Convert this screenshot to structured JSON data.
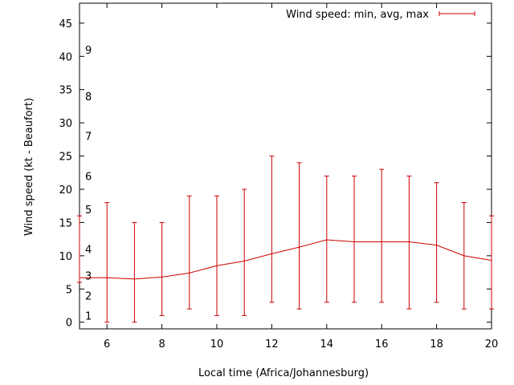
{
  "chart_data": {
    "type": "line",
    "title": "",
    "xlabel": "Local time (Africa/Johannesburg)",
    "ylabel": "Wind speed (kt - Beaufort)",
    "xlim": [
      5,
      20
    ],
    "ylim": [
      -1,
      48
    ],
    "x_ticks": [
      6,
      8,
      10,
      12,
      14,
      16,
      18,
      20
    ],
    "y_ticks": [
      0,
      5,
      10,
      15,
      20,
      25,
      30,
      35,
      40,
      45
    ],
    "grid": false,
    "legend": {
      "label": "Wind speed: min, avg, max",
      "position": "top-right"
    },
    "beaufort_scale": [
      {
        "label": "1",
        "value": 1
      },
      {
        "label": "2",
        "value": 4
      },
      {
        "label": "3",
        "value": 7
      },
      {
        "label": "4",
        "value": 11
      },
      {
        "label": "5",
        "value": 17
      },
      {
        "label": "6",
        "value": 22
      },
      {
        "label": "7",
        "value": 28
      },
      {
        "label": "8",
        "value": 34
      },
      {
        "label": "9",
        "value": 41
      }
    ],
    "series": [
      {
        "name": "Wind speed: min, avg, max",
        "color": "#cc0000",
        "x": [
          5,
          6,
          7,
          8,
          9,
          10,
          11,
          12,
          13,
          14,
          15,
          16,
          17,
          18,
          19,
          20
        ],
        "avg": [
          6.7,
          6.7,
          6.5,
          6.8,
          7.4,
          8.5,
          9.2,
          10.3,
          11.3,
          12.4,
          12.1,
          12.1,
          12.1,
          11.6,
          10.0,
          9.3
        ],
        "min": [
          6,
          0,
          0,
          1,
          2,
          1,
          1,
          3,
          2,
          3,
          3,
          3,
          2,
          3,
          2,
          2
        ],
        "max": [
          16,
          18,
          15,
          15,
          19,
          19,
          20,
          25,
          24,
          22,
          22,
          23,
          22,
          21,
          18,
          16
        ]
      }
    ]
  }
}
